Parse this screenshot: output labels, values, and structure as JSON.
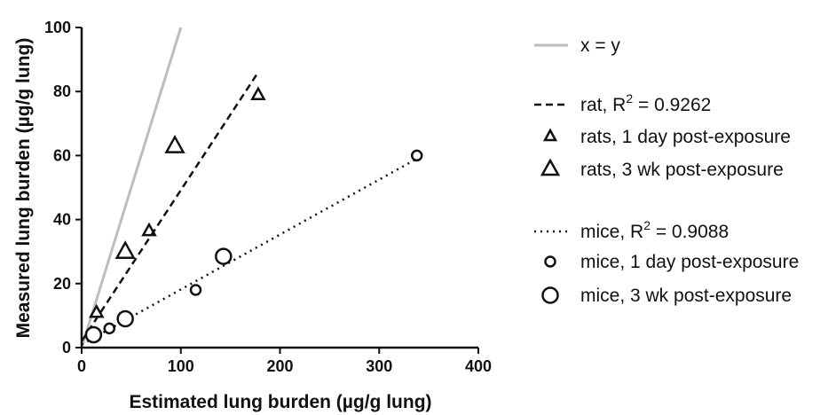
{
  "chart_data": {
    "type": "scatter",
    "xlabel": "Estimated lung burden (µg/g lung)",
    "ylabel": "Measured lung burden (µg/g lung)",
    "xlim": [
      0,
      400
    ],
    "ylim": [
      0,
      100
    ],
    "xticks": [
      "0",
      "100",
      "200",
      "300",
      "400"
    ],
    "yticks": [
      "0",
      "20",
      "40",
      "60",
      "80",
      "100"
    ],
    "grid": false,
    "legend_position": "right",
    "lines": [
      {
        "name": "x = y",
        "style": "solid",
        "color": "#bdbdbd",
        "points": [
          [
            0,
            0
          ],
          [
            100,
            100
          ]
        ]
      },
      {
        "name": "rat, R",
        "r2_value": "2 = 0.9262",
        "style": "dashed",
        "color": "#111111",
        "points": [
          [
            0,
            2
          ],
          [
            178,
            86
          ]
        ]
      },
      {
        "name": "mice, R",
        "r2_value": "2 = 0.9088",
        "style": "dotted",
        "color": "#111111",
        "points": [
          [
            0,
            1
          ],
          [
            338,
            59
          ]
        ]
      }
    ],
    "series": [
      {
        "name": "rats, 1 day post-exposure",
        "marker": "triangle-small",
        "points": [
          [
            15,
            11
          ],
          [
            68,
            36.5
          ],
          [
            178,
            79
          ]
        ]
      },
      {
        "name": "rats, 3 wk post-exposure",
        "marker": "triangle-large",
        "points": [
          [
            44,
            30
          ],
          [
            94,
            63
          ]
        ]
      },
      {
        "name": "mice, 1 day post-exposure",
        "marker": "circle-small",
        "points": [
          [
            28,
            6
          ],
          [
            115,
            18
          ],
          [
            338,
            60
          ]
        ]
      },
      {
        "name": "mice, 3 wk post-exposure",
        "marker": "circle-large",
        "points": [
          [
            12,
            4
          ],
          [
            44,
            9
          ],
          [
            143,
            28.5
          ]
        ]
      }
    ]
  },
  "legend": {
    "xy_label": "x = y",
    "rat_line_label": "rat, R",
    "rat_sup": "2",
    "rat_r2": " = 0.9262",
    "rats_1day": "rats, 1 day post-exposure",
    "rats_3wk": "rats, 3 wk post-exposure",
    "mice_line_label": "mice, R",
    "mice_sup": "2",
    "mice_r2": " = 0.9088",
    "mice_1day": "mice, 1 day post-exposure",
    "mice_3wk": "mice, 3 wk post-exposure"
  }
}
